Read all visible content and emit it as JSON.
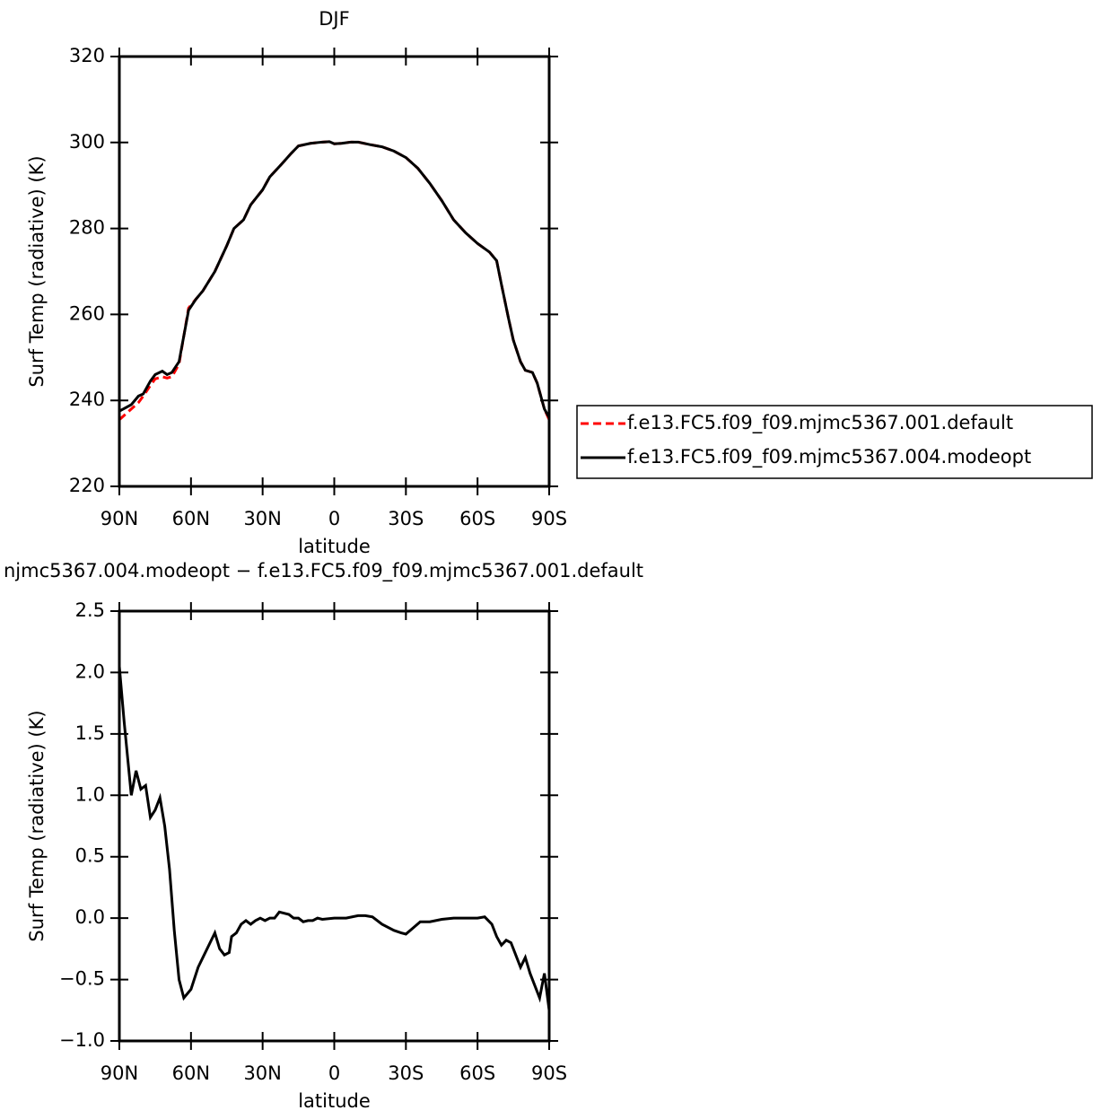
{
  "chart_data": [
    {
      "type": "line",
      "title": "DJF",
      "x_label": "latitude",
      "y_label": "Surf Temp (radiative) (K)",
      "x": [
        90,
        85,
        82,
        80,
        77,
        75,
        72,
        70,
        68,
        65,
        63,
        61,
        58,
        55,
        50,
        45,
        42,
        38,
        35,
        30,
        27,
        22,
        18,
        15,
        10,
        5,
        2,
        0,
        -3,
        -7,
        -10,
        -15,
        -20,
        -25,
        -30,
        -35,
        -40,
        -45,
        -50,
        -55,
        -60,
        -65,
        -68,
        -70,
        -73,
        -75,
        -78,
        -80,
        -83,
        -85,
        -88,
        -90
      ],
      "series": [
        {
          "name": "f.e13.FC5.f09_f09.mjmc5367.001.default",
          "color": "#ff0000",
          "dashed": true,
          "values": [
            235.5,
            238,
            239.5,
            241,
            243.5,
            245,
            245.5,
            245.2,
            245.5,
            248.5,
            255,
            261.5,
            263.5,
            265.5,
            270,
            276,
            280,
            282,
            285.5,
            289,
            292,
            295,
            297.5,
            299.2,
            299.8,
            300.1,
            300.2,
            299.7,
            299.8,
            300.1,
            300.1,
            299.5,
            299,
            298,
            296.5,
            294,
            290.5,
            286.5,
            282,
            279,
            276.5,
            274.5,
            272.5,
            267,
            259,
            254,
            249,
            247,
            246.5,
            244,
            238,
            235.5
          ]
        },
        {
          "name": "f.e13.FC5.f09_f09.mjmc5367.004.modeopt",
          "color": "#000000",
          "dashed": false,
          "values": [
            237.5,
            239,
            241,
            241.5,
            244.5,
            246,
            246.8,
            246,
            246.5,
            249,
            255,
            261,
            263.5,
            265.5,
            270,
            276,
            280,
            282,
            285.5,
            289,
            292,
            295,
            297.5,
            299.2,
            299.8,
            300.1,
            300.2,
            299.7,
            299.8,
            300.1,
            300.1,
            299.5,
            299,
            298,
            296.5,
            294,
            290.5,
            286.5,
            282,
            279,
            276.5,
            274.5,
            272.5,
            267,
            259,
            254,
            249,
            247,
            246.5,
            244,
            238,
            236
          ]
        }
      ],
      "xlim": [
        90,
        -90
      ],
      "xticks": [
        {
          "value": 90,
          "label": "90N"
        },
        {
          "value": 60,
          "label": "60N"
        },
        {
          "value": 30,
          "label": "30N"
        },
        0,
        {
          "value": -30,
          "label": "30S"
        },
        {
          "value": -60,
          "label": "60S"
        },
        {
          "value": -90,
          "label": "90S"
        }
      ],
      "ylim": [
        220,
        320
      ],
      "yticks": [
        220,
        240,
        260,
        280,
        300,
        320
      ],
      "legend": "right"
    },
    {
      "type": "line",
      "title": "njmc5367.004.modeopt − f.e13.FC5.f09_f09.mjmc5367.001.default",
      "x_label": "latitude",
      "y_label": "Surf Temp (radiative) (K)",
      "x": [
        90,
        88,
        85,
        83,
        81,
        79,
        77,
        75,
        73,
        71,
        69,
        67,
        65,
        63,
        60,
        57,
        55,
        52,
        50,
        48,
        46,
        44,
        43,
        41,
        39,
        37,
        35,
        33,
        31,
        29,
        27,
        25,
        23,
        21,
        19,
        17,
        15,
        13,
        11,
        9,
        7,
        5,
        0,
        -5,
        -10,
        -13,
        -16,
        -20,
        -25,
        -28,
        -30,
        -33,
        -36,
        -40,
        -45,
        -50,
        -55,
        -60,
        -63,
        -66,
        -68,
        -70,
        -72,
        -74,
        -76,
        -78,
        -80,
        -82,
        -84,
        -86,
        -88,
        -90
      ],
      "series": [
        {
          "name": null,
          "color": "#000000",
          "dashed": false,
          "values": [
            2.05,
            1.6,
            1.0,
            1.2,
            1.05,
            1.08,
            0.82,
            0.88,
            0.98,
            0.75,
            0.4,
            -0.1,
            -0.5,
            -0.65,
            -0.58,
            -0.4,
            -0.32,
            -0.2,
            -0.12,
            -0.25,
            -0.3,
            -0.28,
            -0.15,
            -0.12,
            -0.05,
            -0.02,
            -0.05,
            -0.02,
            0,
            -0.02,
            0,
            0,
            0.05,
            0.04,
            0.03,
            0,
            0,
            -0.03,
            -0.02,
            -0.02,
            0,
            -0.01,
            0,
            0,
            0.02,
            0.02,
            0.01,
            -0.05,
            -0.1,
            -0.12,
            -0.13,
            -0.08,
            -0.03,
            -0.03,
            -0.01,
            0,
            0,
            0,
            0.01,
            -0.05,
            -0.15,
            -0.22,
            -0.18,
            -0.2,
            -0.3,
            -0.4,
            -0.32,
            -0.45,
            -0.55,
            -0.65,
            -0.45,
            -0.75
          ]
        }
      ],
      "xlim": [
        90,
        -90
      ],
      "xticks": [
        {
          "value": 90,
          "label": "90N"
        },
        {
          "value": 60,
          "label": "60N"
        },
        {
          "value": 30,
          "label": "30N"
        },
        0,
        {
          "value": -30,
          "label": "30S"
        },
        {
          "value": -60,
          "label": "60S"
        },
        {
          "value": -90,
          "label": "90S"
        }
      ],
      "ylim": [
        -1,
        2.5
      ],
      "yticks": [
        {
          "value": -1,
          "label": "−1.0"
        },
        {
          "value": -0.5,
          "label": "−0.5"
        },
        {
          "value": 0,
          "label": "0.0"
        },
        0.5,
        {
          "value": 1,
          "label": "1.0"
        },
        1.5,
        {
          "value": 2,
          "label": "2.0"
        },
        2.5
      ]
    }
  ]
}
